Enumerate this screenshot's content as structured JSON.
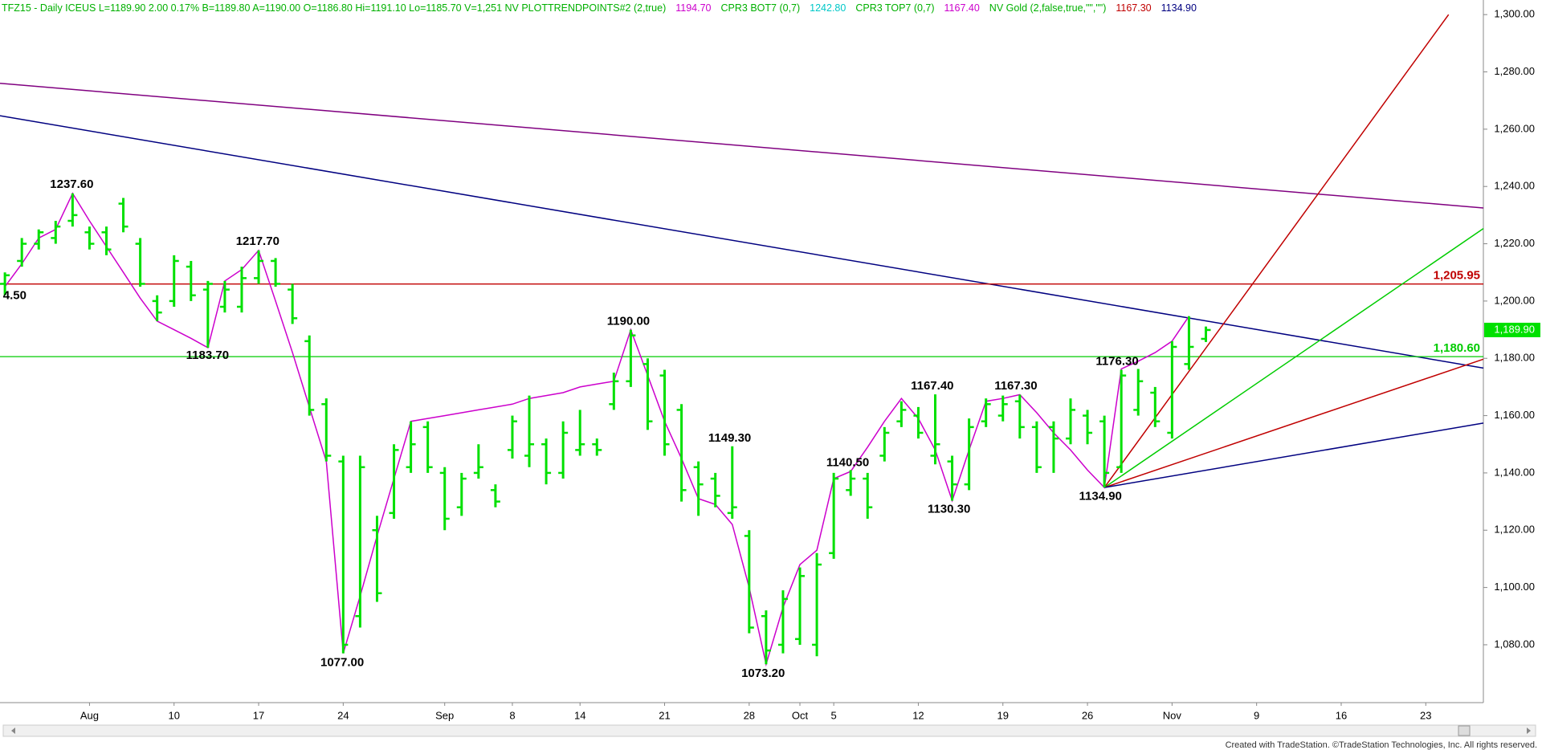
{
  "chart_data": {
    "type": "ohlc",
    "header": [
      {
        "text": "TFZ15 - Daily  ICEUS  L=1189.90  2.00  0.17%  B=1189.80  A=1190.00  O=1186.80  Hi=1191.10  Lo=1185.70  V=1,251  NV  PLOTTRENDPOINTS#2 (2,true)",
        "color": "#00b000"
      },
      {
        "text": "1194.70",
        "color": "#cc00cc"
      },
      {
        "text": "CPR3 BOT7 (0,7)",
        "color": "#00b000"
      },
      {
        "text": "1242.80",
        "color": "#00c8c8"
      },
      {
        "text": "CPR3 TOP7 (0,7)",
        "color": "#00b000"
      },
      {
        "text": "1167.40",
        "color": "#cc00cc"
      },
      {
        "text": "NV Gold (2,false,true,\"\",\"\")",
        "color": "#00b000"
      },
      {
        "text": "1167.30",
        "color": "#c00000"
      },
      {
        "text": "1134.90",
        "color": "#000080"
      }
    ],
    "categories": [
      null,
      null,
      null,
      null,
      null,
      "Aug",
      null,
      null,
      null,
      null,
      "10",
      null,
      null,
      null,
      null,
      "17",
      null,
      null,
      null,
      null,
      "24",
      null,
      null,
      null,
      null,
      null,
      "Sep",
      null,
      null,
      null,
      "8",
      null,
      null,
      null,
      "14",
      null,
      null,
      null,
      null,
      "21",
      null,
      null,
      null,
      null,
      "28",
      null,
      null,
      "Oct",
      null,
      "5",
      null,
      null,
      null,
      null,
      "12",
      null,
      null,
      null,
      null,
      "19",
      null,
      null,
      null,
      null,
      "26",
      null,
      null,
      null,
      null,
      "Nov",
      null,
      null,
      null,
      null,
      "9",
      null,
      null,
      null,
      null,
      "16",
      null,
      null,
      null,
      null,
      "23",
      null,
      null,
      null
    ],
    "open": [
      1206,
      1214,
      1220,
      1222,
      1228,
      1224,
      1224,
      1234,
      1220,
      1200,
      1200,
      1212,
      1204,
      1198,
      1198,
      1208,
      1214,
      1204,
      1186,
      1164,
      1144,
      1090,
      1120,
      1126,
      1142,
      1156,
      1140,
      1128,
      1140,
      1134,
      1148,
      1146,
      1150,
      1140,
      1148,
      1150,
      1164,
      1172,
      1178,
      1174,
      1162,
      1142,
      1138,
      1126,
      1118,
      1090,
      1080,
      1082,
      1080,
      1112,
      1134,
      1138,
      1146,
      1158,
      1160,
      1146,
      1144,
      1136,
      1158,
      1160,
      1165,
      1156,
      1156,
      1152,
      1160,
      1158,
      1142,
      1162,
      1168,
      1154,
      1178,
      1186.8,
      null,
      null,
      null,
      null,
      null,
      null,
      null,
      null,
      null,
      null,
      null,
      null,
      null,
      null,
      null,
      null
    ],
    "high": [
      1210,
      1222,
      1225,
      1228,
      1237.6,
      1226,
      1226,
      1236,
      1222,
      1202,
      1216,
      1214,
      1207,
      1207,
      1212,
      1217.7,
      1215,
      1206,
      1188,
      1166,
      1146,
      1146,
      1125,
      1150,
      1158,
      1158,
      1142,
      1140,
      1150,
      1136,
      1160,
      1167,
      1152,
      1158,
      1162,
      1152,
      1175,
      1190,
      1180,
      1176,
      1164,
      1144,
      1140,
      1149.3,
      1120,
      1092,
      1099,
      1107,
      1112,
      1140,
      1141,
      1140,
      1156,
      1165,
      1163,
      1167.4,
      1146,
      1159,
      1166,
      1167,
      1167.3,
      1158,
      1158,
      1166,
      1162,
      1160,
      1176,
      1176.3,
      1170,
      1186,
      1194.7,
      1191.1,
      null,
      null,
      null,
      null,
      null,
      null,
      null,
      null,
      null,
      null,
      null,
      null,
      null,
      null,
      null,
      null
    ],
    "low": [
      1202,
      1212,
      1218,
      1220,
      1226,
      1218,
      1216,
      1224,
      1205,
      1193,
      1198,
      1200,
      1183.7,
      1196,
      1196,
      1206,
      1205,
      1192,
      1160,
      1144,
      1077,
      1086,
      1095,
      1124,
      1140,
      1140,
      1120,
      1125,
      1138,
      1128,
      1145,
      1142,
      1136,
      1138,
      1146,
      1146,
      1162,
      1170,
      1155,
      1146,
      1130,
      1125,
      1128,
      1124,
      1084,
      1073.2,
      1077,
      1080,
      1076,
      1110,
      1132,
      1124,
      1144,
      1156,
      1152,
      1143,
      1130.3,
      1134,
      1156,
      1158,
      1152,
      1140,
      1140,
      1150,
      1150,
      1134.9,
      1140,
      1160,
      1156,
      1152,
      1176,
      1185.7,
      null,
      null,
      null,
      null,
      null,
      null,
      null,
      null,
      null,
      null,
      null,
      null,
      null,
      null,
      null,
      null
    ],
    "close": [
      1209,
      1220,
      1224,
      1226,
      1230,
      1220,
      1218,
      1226,
      1206,
      1196,
      1214,
      1202,
      1206,
      1204,
      1208,
      1214,
      1206,
      1194,
      1162,
      1146,
      1080,
      1142,
      1098,
      1148,
      1150,
      1142,
      1124,
      1138,
      1142,
      1130,
      1158,
      1150,
      1140,
      1154,
      1150,
      1148,
      1172,
      1188,
      1158,
      1150,
      1134,
      1136,
      1132,
      1128,
      1086,
      1078,
      1096,
      1104,
      1108,
      1138,
      1138,
      1128,
      1154,
      1162,
      1154,
      1150,
      1136,
      1156,
      1164,
      1164,
      1156,
      1142,
      1152,
      1162,
      1154,
      1140,
      1174,
      1172,
      1158,
      1184,
      1184,
      1189.9,
      null,
      null,
      null,
      null,
      null,
      null,
      null,
      null,
      null,
      null,
      null,
      null,
      null,
      null,
      null,
      null
    ],
    "bar_color": "#00e000",
    "zigzag": {
      "color": "#cc00cc",
      "values": [
        1205,
        1213,
        1222,
        1225,
        1237.6,
        1228,
        1219,
        1210,
        1201,
        1193,
        1190,
        1187,
        1183.7,
        1207,
        1211,
        1217.7,
        1200,
        1182,
        1163,
        1144,
        1077,
        1097,
        1118,
        1138,
        1158,
        1159,
        1160,
        1161,
        1162,
        1163,
        1164,
        1166,
        1167,
        1168,
        1170,
        1171,
        1172,
        1190,
        1174,
        1158,
        1145,
        1131,
        1129,
        1122,
        1100,
        1073.2,
        1093,
        1108,
        1113,
        1138,
        1140.5,
        1149,
        1158,
        1166,
        1159,
        1148,
        1130.3,
        1148,
        1165,
        1166,
        1167.3,
        1161,
        1154,
        1148,
        1141,
        1134.9,
        1176.3,
        1179,
        1182,
        1186,
        1194.7,
        null,
        null,
        null,
        null,
        null,
        null,
        null,
        null,
        null,
        null,
        null,
        null,
        null,
        null,
        null,
        null,
        null
      ]
    },
    "trend_lines": [
      {
        "color": "#800080",
        "start": 1276,
        "end": 1232.5
      },
      {
        "color": "#000080",
        "start": 1264.7,
        "end": 1176.6
      }
    ],
    "fan_origin": 1134.9,
    "fan_lines": [
      {
        "color": "#c00000",
        "end": 1300
      },
      {
        "color": "#00cc00",
        "end": 1225.3
      },
      {
        "color": "#c00000",
        "end": 1179.7
      },
      {
        "color": "#000080",
        "end": 1157.4
      }
    ],
    "levels": [
      {
        "value": 1205.95,
        "label": "1,205.95",
        "color": "#c00000"
      },
      {
        "value": 1180.6,
        "label": "1,180.60",
        "color": "#00cc00"
      }
    ],
    "last": {
      "value": 1189.9,
      "label": "1,189.90",
      "color": "#00e000"
    },
    "annotations": [
      "4.50",
      "1237.60",
      "1217.70",
      "1183.70",
      "1077.00",
      "1190.00",
      "1149.30",
      "1073.20",
      "1140.50",
      "1167.40",
      "1130.30",
      "1167.30",
      "1176.30",
      "1134.90"
    ],
    "ylim": [
      1059.8,
      1305.1
    ],
    "yticks": [
      {
        "value": 1080,
        "label": "1,080.00"
      },
      {
        "value": 1100,
        "label": "1,100.00"
      },
      {
        "value": 1120,
        "label": "1,120.00"
      },
      {
        "value": 1140,
        "label": "1,140.00"
      },
      {
        "value": 1160,
        "label": "1,160.00"
      },
      {
        "value": 1180,
        "label": "1,180.00"
      },
      {
        "value": 1200,
        "label": "1,200.00"
      },
      {
        "value": 1220,
        "label": "1,220.00"
      },
      {
        "value": 1240,
        "label": "1,240.00"
      },
      {
        "value": 1260,
        "label": "1,260.00"
      },
      {
        "value": 1280,
        "label": "1,280.00"
      },
      {
        "value": 1300,
        "label": "1,300.00"
      }
    ],
    "footer": "Created with TradeStation. ©TradeStation Technologies, Inc. All rights reserved."
  }
}
